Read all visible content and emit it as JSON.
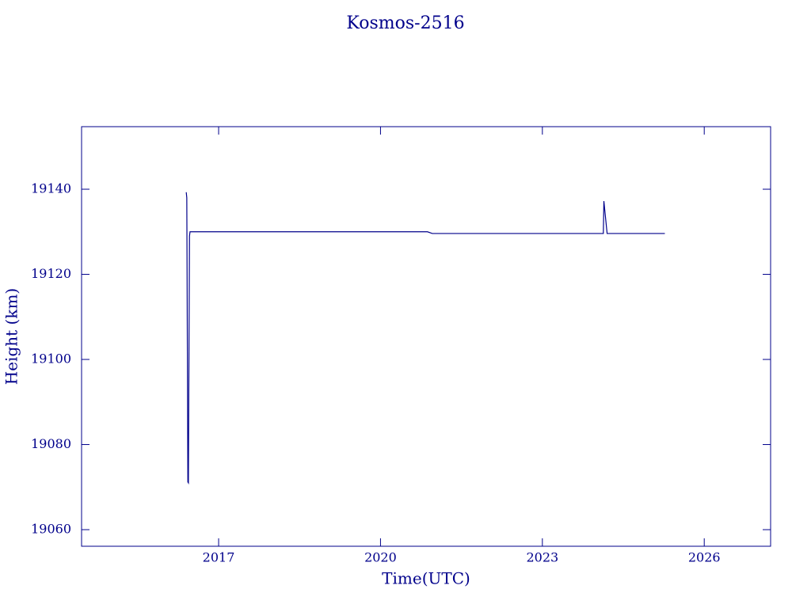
{
  "chart_data": {
    "type": "line",
    "title": "Kosmos-2516",
    "x_label": "Time(UTC)",
    "y_label": "Height (km)",
    "x": [
      2016.4,
      2016.41,
      2016.43,
      2016.44,
      2016.46,
      2016.47,
      2020.87,
      2020.96,
      2024.13,
      2024.14,
      2024.2,
      2025.27
    ],
    "series": [
      {
        "color": "#00008b",
        "values": [
          19139.3,
          19138,
          19071.2,
          19071,
          19129,
          19130,
          19130,
          19129.6,
          19129.6,
          19137.2,
          19129.6,
          19129.6
        ]
      }
    ],
    "xlim": [
      2014.46,
      2027.23
    ],
    "xticks": [
      2017,
      2020,
      2023,
      2026
    ],
    "ylim": [
      19056.1,
      19154.7
    ],
    "yticks": [
      19060,
      19080,
      19100,
      19120,
      19140
    ],
    "grid": false
  }
}
